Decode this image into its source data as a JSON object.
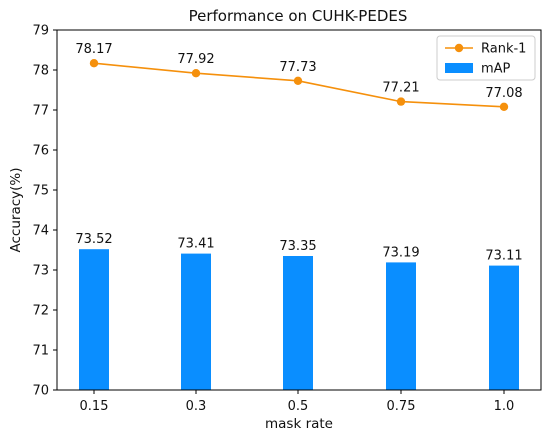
{
  "chart_data": {
    "type": "bar+line",
    "title": "Performance on CUHK-PEDES",
    "xlabel": "mask rate",
    "ylabel": "Accuracy(%)",
    "categories": [
      "0.15",
      "0.3",
      "0.5",
      "0.75",
      "1.0"
    ],
    "ylim": [
      70,
      79
    ],
    "yticks": [
      70,
      71,
      72,
      73,
      74,
      75,
      76,
      77,
      78,
      79
    ],
    "grid": false,
    "legend_position": "top-right",
    "series": [
      {
        "name": "Rank-1",
        "type": "line",
        "color": "#F5900C",
        "marker": "circle",
        "values": [
          78.17,
          77.92,
          77.73,
          77.21,
          77.08
        ],
        "labels": [
          "78.17",
          "77.92",
          "77.73",
          "77.21",
          "77.08"
        ]
      },
      {
        "name": "mAP",
        "type": "bar",
        "color": "#0A8EFF",
        "values": [
          73.52,
          73.41,
          73.35,
          73.19,
          73.11
        ],
        "labels": [
          "73.52",
          "73.41",
          "73.35",
          "73.19",
          "73.11"
        ]
      }
    ]
  }
}
